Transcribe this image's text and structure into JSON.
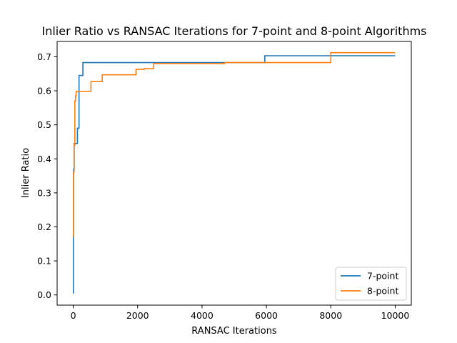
{
  "chart_data": {
    "type": "line",
    "title": "Inlier Ratio vs RANSAC Iterations for 7-point and 8-point Algorithms",
    "xlabel": "RANSAC Iterations",
    "ylabel": "Inlier Ratio",
    "xlim": [
      -500,
      10500
    ],
    "ylim": [
      -0.03,
      0.745
    ],
    "xticks": [
      0,
      2000,
      4000,
      6000,
      8000,
      10000
    ],
    "xtick_labels": [
      "0",
      "2000",
      "4000",
      "6000",
      "8000",
      "10000"
    ],
    "yticks": [
      0.0,
      0.1,
      0.2,
      0.3,
      0.4,
      0.5,
      0.6,
      0.7
    ],
    "ytick_labels": [
      "0.0",
      "0.1",
      "0.2",
      "0.3",
      "0.4",
      "0.5",
      "0.6",
      "0.7"
    ],
    "grid": false,
    "legend_position": "bottom-right",
    "step": true,
    "series": [
      {
        "name": "7-point",
        "color": "#1f77b4",
        "x": [
          1,
          5,
          10,
          30,
          80,
          130,
          180,
          300,
          2000,
          4000,
          5950,
          8000,
          10000
        ],
        "y": [
          0.005,
          0.17,
          0.37,
          0.445,
          0.445,
          0.49,
          0.645,
          0.683,
          0.683,
          0.683,
          0.703,
          0.703,
          0.703
        ]
      },
      {
        "name": "8-point",
        "color": "#ff7f0e",
        "x": [
          1,
          10,
          25,
          50,
          70,
          90,
          150,
          550,
          900,
          1950,
          2200,
          2500,
          4700,
          8000,
          10000
        ],
        "y": [
          0.17,
          0.36,
          0.44,
          0.57,
          0.585,
          0.598,
          0.598,
          0.627,
          0.647,
          0.663,
          0.665,
          0.68,
          0.683,
          0.712,
          0.712
        ]
      }
    ]
  }
}
